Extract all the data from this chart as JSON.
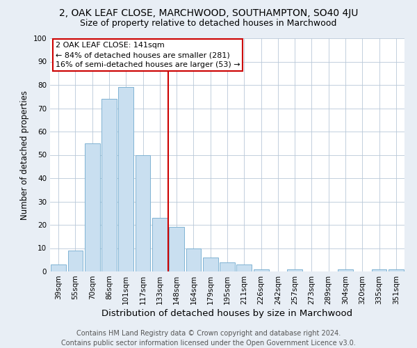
{
  "title1": "2, OAK LEAF CLOSE, MARCHWOOD, SOUTHAMPTON, SO40 4JU",
  "title2": "Size of property relative to detached houses in Marchwood",
  "xlabel": "Distribution of detached houses by size in Marchwood",
  "ylabel": "Number of detached properties",
  "categories": [
    "39sqm",
    "55sqm",
    "70sqm",
    "86sqm",
    "101sqm",
    "117sqm",
    "133sqm",
    "148sqm",
    "164sqm",
    "179sqm",
    "195sqm",
    "211sqm",
    "226sqm",
    "242sqm",
    "257sqm",
    "273sqm",
    "289sqm",
    "304sqm",
    "320sqm",
    "335sqm",
    "351sqm"
  ],
  "values": [
    3,
    9,
    55,
    74,
    79,
    50,
    23,
    19,
    10,
    6,
    4,
    3,
    1,
    0,
    1,
    0,
    0,
    1,
    0,
    1,
    1
  ],
  "bar_color": "#c9dff0",
  "bar_edge_color": "#7fb3d3",
  "vline_x_idx": 6.5,
  "vline_color": "#cc0000",
  "annotation_text": "2 OAK LEAF CLOSE: 141sqm\n← 84% of detached houses are smaller (281)\n16% of semi-detached houses are larger (53) →",
  "annotation_box_color": "#ffffff",
  "annotation_box_edge": "#cc0000",
  "ylim": [
    0,
    100
  ],
  "yticks": [
    0,
    10,
    20,
    30,
    40,
    50,
    60,
    70,
    80,
    90,
    100
  ],
  "footer": "Contains HM Land Registry data © Crown copyright and database right 2024.\nContains public sector information licensed under the Open Government Licence v3.0.",
  "bg_color": "#e8eef5",
  "plot_bg_color": "#ffffff",
  "grid_color": "#b8c8d8",
  "title1_fontsize": 10,
  "title2_fontsize": 9,
  "xlabel_fontsize": 9.5,
  "ylabel_fontsize": 8.5,
  "tick_fontsize": 7.5,
  "footer_fontsize": 7,
  "ann_fontsize": 8
}
